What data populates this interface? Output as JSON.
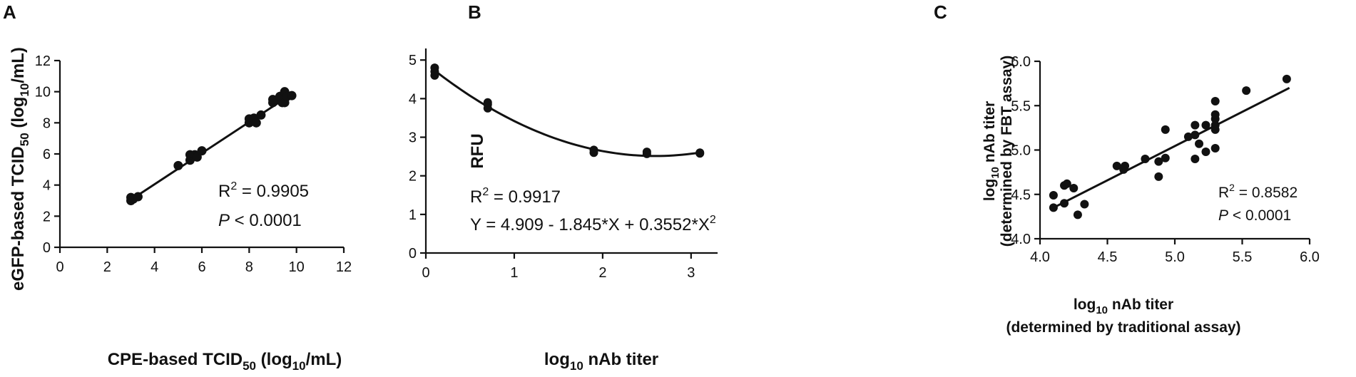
{
  "chart_data": [
    {
      "panel": "A",
      "type": "scatter",
      "xlabel": "CPE-based TCID50 (log10/mL)",
      "ylabel": "eGFP-based TCID50 (log10/mL)",
      "xlim": [
        0,
        12
      ],
      "ylim": [
        0,
        12
      ],
      "xticks": [
        0,
        2,
        4,
        6,
        8,
        10,
        12
      ],
      "yticks": [
        0,
        2,
        4,
        6,
        8,
        10,
        12
      ],
      "points": [
        [
          3.0,
          3.0
        ],
        [
          3.0,
          3.2
        ],
        [
          3.1,
          3.1
        ],
        [
          3.3,
          3.25
        ],
        [
          5.0,
          5.25
        ],
        [
          5.5,
          5.6
        ],
        [
          5.5,
          5.95
        ],
        [
          5.7,
          5.95
        ],
        [
          5.8,
          5.8
        ],
        [
          6.0,
          6.2
        ],
        [
          8.0,
          8.0
        ],
        [
          8.0,
          8.25
        ],
        [
          8.2,
          8.3
        ],
        [
          8.3,
          8.0
        ],
        [
          8.5,
          8.5
        ],
        [
          9.0,
          9.3
        ],
        [
          9.0,
          9.5
        ],
        [
          9.2,
          9.5
        ],
        [
          9.3,
          9.7
        ],
        [
          9.4,
          9.3
        ],
        [
          9.5,
          10.0
        ],
        [
          9.5,
          9.3
        ],
        [
          9.6,
          9.7
        ],
        [
          9.8,
          9.75
        ]
      ],
      "fit": {
        "kind": "linear",
        "x": [
          3.0,
          9.8
        ],
        "y": [
          3.05,
          9.85
        ]
      },
      "annotations": [
        {
          "text": "R2 = 0.9905",
          "prefix": "R",
          "sup": "2",
          "rest": " = 0.9905"
        },
        {
          "text": "P < 0.0001",
          "italic": "P",
          "rest": " < 0.0001"
        }
      ]
    },
    {
      "panel": "B",
      "type": "scatter",
      "xlabel": "log10 nAb titer",
      "ylabel": "RFU",
      "xlim": [
        0,
        3.3
      ],
      "ylim": [
        0,
        5.3
      ],
      "xticks": [
        0,
        1,
        2,
        3
      ],
      "yticks": [
        0,
        1,
        2,
        3,
        4,
        5
      ],
      "points": [
        [
          0.1,
          4.6
        ],
        [
          0.1,
          4.7
        ],
        [
          0.1,
          4.8
        ],
        [
          0.7,
          3.75
        ],
        [
          0.7,
          3.85
        ],
        [
          0.7,
          3.9
        ],
        [
          1.9,
          2.6
        ],
        [
          1.9,
          2.67
        ],
        [
          2.5,
          2.57
        ],
        [
          2.5,
          2.62
        ],
        [
          3.1,
          2.58
        ],
        [
          3.1,
          2.6
        ]
      ],
      "fit": {
        "kind": "quadratic",
        "a": 4.909,
        "b": -1.845,
        "c": 0.3552,
        "x": [
          0.1,
          3.1
        ]
      },
      "annotations": [
        {
          "text": "R2 = 0.9917",
          "prefix": "R",
          "sup": "2",
          "rest": " = 0.9917"
        },
        {
          "text": "Y = 4.909 - 1.845*X + 0.3552*X2"
        }
      ]
    },
    {
      "panel": "C",
      "type": "scatter",
      "xlabel": "log10 nAb  titer",
      "xlabel2": "(determined by traditional assay)",
      "ylabel": "log10 nAb titer",
      "ylabel2": "(determined by FBT assay)",
      "xlim": [
        4.0,
        6.0
      ],
      "ylim": [
        4.0,
        6.0
      ],
      "xticks": [
        "4.0",
        "4.5",
        "5.0",
        "5.5",
        "6.0"
      ],
      "yticks": [
        "4.0",
        "4.5",
        "5.0",
        "5.5",
        "6.0"
      ],
      "points": [
        [
          4.1,
          4.35
        ],
        [
          4.1,
          4.49
        ],
        [
          4.18,
          4.4
        ],
        [
          4.18,
          4.6
        ],
        [
          4.2,
          4.62
        ],
        [
          4.25,
          4.57
        ],
        [
          4.28,
          4.27
        ],
        [
          4.33,
          4.39
        ],
        [
          4.57,
          4.82
        ],
        [
          4.62,
          4.78
        ],
        [
          4.63,
          4.82
        ],
        [
          4.78,
          4.9
        ],
        [
          4.88,
          4.7
        ],
        [
          4.88,
          4.87
        ],
        [
          4.93,
          4.91
        ],
        [
          4.93,
          5.23
        ],
        [
          5.1,
          5.15
        ],
        [
          5.15,
          4.9
        ],
        [
          5.15,
          5.17
        ],
        [
          5.15,
          5.28
        ],
        [
          5.18,
          5.07
        ],
        [
          5.23,
          4.98
        ],
        [
          5.23,
          5.28
        ],
        [
          5.3,
          5.02
        ],
        [
          5.3,
          5.23
        ],
        [
          5.3,
          5.28
        ],
        [
          5.3,
          5.35
        ],
        [
          5.3,
          5.4
        ],
        [
          5.3,
          5.55
        ],
        [
          5.53,
          5.67
        ],
        [
          5.83,
          5.8
        ]
      ],
      "fit": {
        "kind": "linear",
        "x": [
          4.1,
          5.85
        ],
        "y": [
          4.35,
          5.7
        ]
      },
      "annotations": [
        {
          "text": "R2 = 0.8582",
          "prefix": "R",
          "sup": "2",
          "rest": " = 0.8582"
        },
        {
          "text": "P < 0.0001",
          "italic": "P",
          "rest": " < 0.0001"
        }
      ]
    }
  ]
}
